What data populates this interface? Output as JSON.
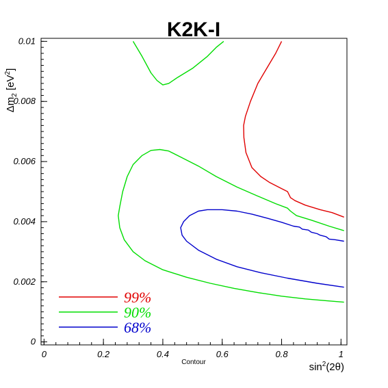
{
  "chart_data": {
    "type": "line",
    "title": "K2K-I",
    "xlabel": "sin²(2θ)",
    "xlabel_main": "sin",
    "xlabel_sup": "2",
    "xlabel_tail": "(2θ)",
    "ylabel": "Δm₂ [eV²]",
    "ylabel_main": "Δm",
    "ylabel_sub": "2",
    "ylabel_mid": " [eV",
    "ylabel_sup": "2",
    "ylabel_tail": "]",
    "sub_label": "Contour",
    "xlim": [
      -0.01,
      1.02
    ],
    "ylim": [
      -0.0001,
      0.0101
    ],
    "xticks": [
      0,
      0.2,
      0.4,
      0.6,
      0.8,
      1
    ],
    "xtick_labels": [
      "0",
      "0.2",
      "0.4",
      "0.6",
      "0.8",
      "1"
    ],
    "yticks": [
      0,
      0.002,
      0.004,
      0.006,
      0.008,
      0.01
    ],
    "ytick_labels": [
      "0",
      "0.002",
      "0.004",
      "0.006",
      "0.008",
      "0.01"
    ],
    "grid": false,
    "legend_position": "bottom-left",
    "series": [
      {
        "name": "99%",
        "color": "#e00000",
        "segments": [
          [
            [
              0.8,
              0.01
            ],
            [
              0.78,
              0.0096
            ],
            [
              0.75,
              0.0091
            ],
            [
              0.72,
              0.0086
            ],
            [
              0.695,
              0.008
            ],
            [
              0.678,
              0.0075
            ],
            [
              0.672,
              0.0072
            ],
            [
              0.673,
              0.0068
            ],
            [
              0.68,
              0.0063
            ],
            [
              0.7,
              0.0058
            ],
            [
              0.73,
              0.0055
            ],
            [
              0.76,
              0.0053
            ],
            [
              0.8,
              0.0051
            ],
            [
              0.82,
              0.005
            ],
            [
              0.83,
              0.0048
            ],
            [
              0.845,
              0.0047
            ],
            [
              0.88,
              0.00455
            ],
            [
              0.93,
              0.0044
            ],
            [
              0.97,
              0.0043
            ],
            [
              1.01,
              0.00415
            ]
          ]
        ]
      },
      {
        "name": "90%",
        "color": "#00dd00",
        "segments": [
          [
            [
              0.3,
              0.01
            ],
            [
              0.33,
              0.0095
            ],
            [
              0.36,
              0.00895
            ],
            [
              0.38,
              0.0087
            ],
            [
              0.4,
              0.00855
            ],
            [
              0.42,
              0.0086
            ],
            [
              0.45,
              0.0088
            ],
            [
              0.5,
              0.0091
            ],
            [
              0.55,
              0.0095
            ],
            [
              0.58,
              0.0098
            ],
            [
              0.605,
              0.01
            ]
          ],
          [
            [
              1.01,
              0.0037
            ],
            [
              0.96,
              0.00385
            ],
            [
              0.9,
              0.00405
            ],
            [
              0.85,
              0.0042
            ],
            [
              0.83,
              0.00435
            ],
            [
              0.82,
              0.00445
            ],
            [
              0.78,
              0.0046
            ],
            [
              0.72,
              0.00485
            ],
            [
              0.65,
              0.00515
            ],
            [
              0.58,
              0.0055
            ],
            [
              0.52,
              0.00585
            ],
            [
              0.46,
              0.00615
            ],
            [
              0.42,
              0.00635
            ],
            [
              0.39,
              0.0064
            ],
            [
              0.36,
              0.00637
            ],
            [
              0.33,
              0.0062
            ],
            [
              0.3,
              0.0059
            ],
            [
              0.28,
              0.0055
            ],
            [
              0.265,
              0.005
            ],
            [
              0.255,
              0.0045
            ],
            [
              0.25,
              0.0042
            ],
            [
              0.255,
              0.0038
            ],
            [
              0.27,
              0.0034
            ],
            [
              0.3,
              0.003
            ],
            [
              0.34,
              0.0027
            ],
            [
              0.4,
              0.0024
            ],
            [
              0.48,
              0.00215
            ],
            [
              0.56,
              0.00195
            ],
            [
              0.64,
              0.00178
            ],
            [
              0.72,
              0.00164
            ],
            [
              0.8,
              0.00152
            ],
            [
              0.88,
              0.00143
            ],
            [
              0.95,
              0.00137
            ],
            [
              1.01,
              0.00132
            ]
          ]
        ]
      },
      {
        "name": "68%",
        "color": "#0000cc",
        "segments": [
          [
            [
              1.01,
              0.00335
            ],
            [
              0.98,
              0.0034
            ],
            [
              0.96,
              0.00342
            ],
            [
              0.95,
              0.0035
            ],
            [
              0.93,
              0.00355
            ],
            [
              0.92,
              0.0036
            ],
            [
              0.9,
              0.00365
            ],
            [
              0.89,
              0.00372
            ],
            [
              0.87,
              0.00375
            ],
            [
              0.86,
              0.00382
            ],
            [
              0.84,
              0.00385
            ],
            [
              0.8,
              0.00398
            ],
            [
              0.75,
              0.00412
            ],
            [
              0.7,
              0.00425
            ],
            [
              0.65,
              0.00435
            ],
            [
              0.6,
              0.0044
            ],
            [
              0.55,
              0.0044
            ],
            [
              0.52,
              0.00435
            ],
            [
              0.49,
              0.0042
            ],
            [
              0.47,
              0.004
            ],
            [
              0.46,
              0.0038
            ],
            [
              0.465,
              0.00355
            ],
            [
              0.48,
              0.00335
            ],
            [
              0.52,
              0.00305
            ],
            [
              0.58,
              0.00275
            ],
            [
              0.65,
              0.0025
            ],
            [
              0.73,
              0.0023
            ],
            [
              0.82,
              0.00212
            ],
            [
              0.92,
              0.00195
            ],
            [
              1.01,
              0.00182
            ]
          ]
        ]
      }
    ]
  }
}
